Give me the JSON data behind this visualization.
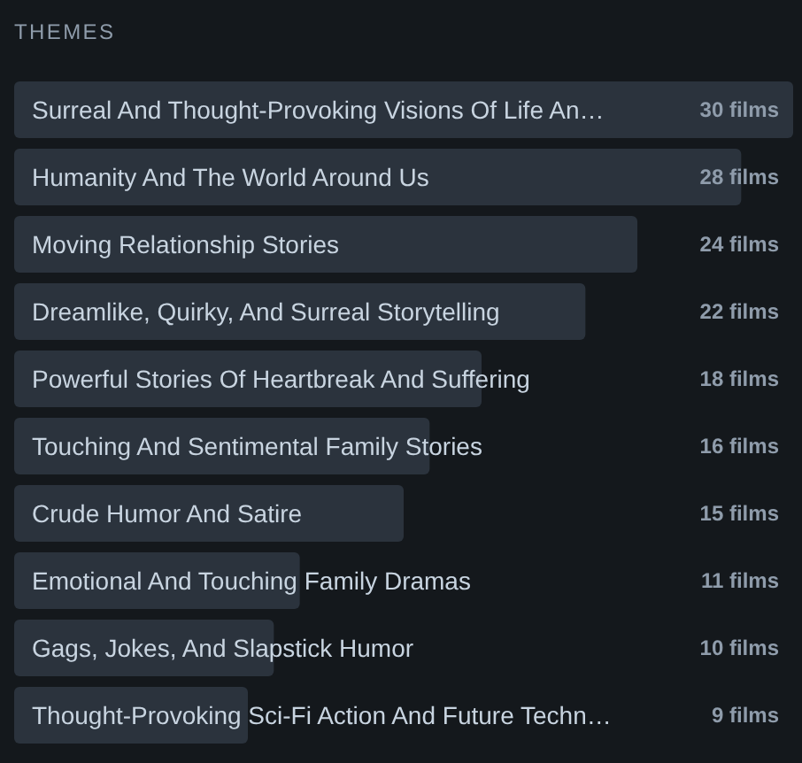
{
  "chart_data": {
    "type": "bar",
    "orientation": "horizontal",
    "title": "THEMES",
    "categories": [
      "Surreal And Thought-Provoking Visions Of Life An…",
      "Humanity And The World Around Us",
      "Moving Relationship Stories",
      "Dreamlike, Quirky, And Surreal Storytelling",
      "Powerful Stories Of Heartbreak And Suffering",
      "Touching And Sentimental Family Stories",
      "Crude Humor And Satire",
      "Emotional And Touching Family Dramas",
      "Gags, Jokes, And Slapstick Humor",
      "Thought-Provoking Sci-Fi Action And Future Techn…"
    ],
    "values": [
      30,
      28,
      24,
      22,
      18,
      16,
      15,
      11,
      10,
      9
    ],
    "value_labels": [
      "30 films",
      "28 films",
      "24 films",
      "22 films",
      "18 films",
      "16 films",
      "15 films",
      "11 films",
      "10 films",
      "9 films"
    ],
    "color": "#2b333d"
  }
}
